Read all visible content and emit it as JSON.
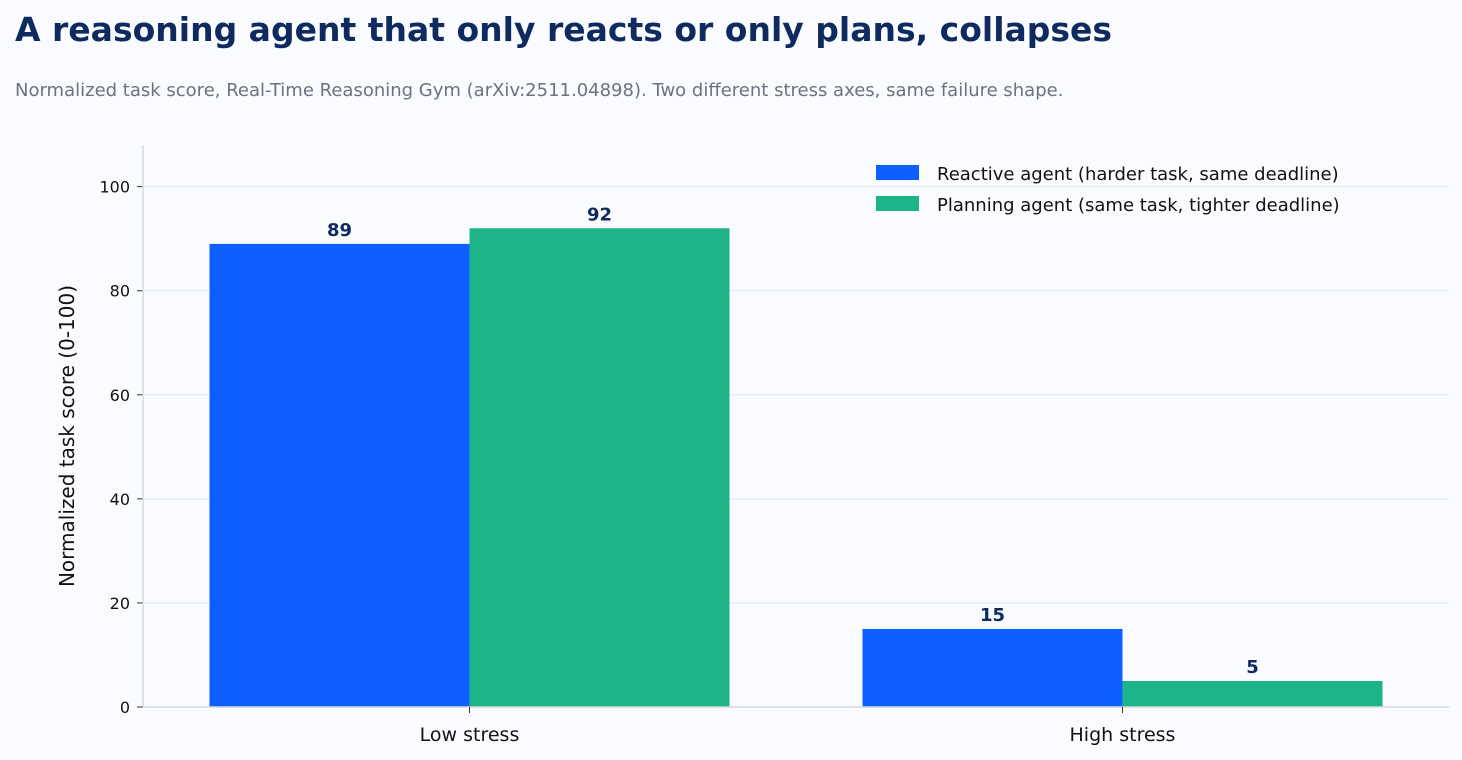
{
  "title": "A reasoning agent that only reacts or only plans, collapses",
  "subtitle": "Normalized task score, Real-Time Reasoning Gym (arXiv:2511.04898). Two different stress axes, same failure shape.",
  "chart_data": {
    "type": "bar",
    "categories": [
      "Low stress",
      "High stress"
    ],
    "series": [
      {
        "name": "Reactive agent (harder task, same deadline)",
        "values": [
          89,
          15
        ],
        "color": "#0d5fff"
      },
      {
        "name": "Planning agent (same task, tighter deadline)",
        "values": [
          92,
          5
        ],
        "color": "#1db48a"
      }
    ],
    "ylabel": "Normalized task score (0-100)",
    "xlabel": "",
    "ylim": [
      0,
      108
    ],
    "yticks": [
      0,
      20,
      40,
      60,
      80,
      100
    ],
    "grid": true,
    "legend_position": "top-right",
    "show_data_labels": true
  }
}
